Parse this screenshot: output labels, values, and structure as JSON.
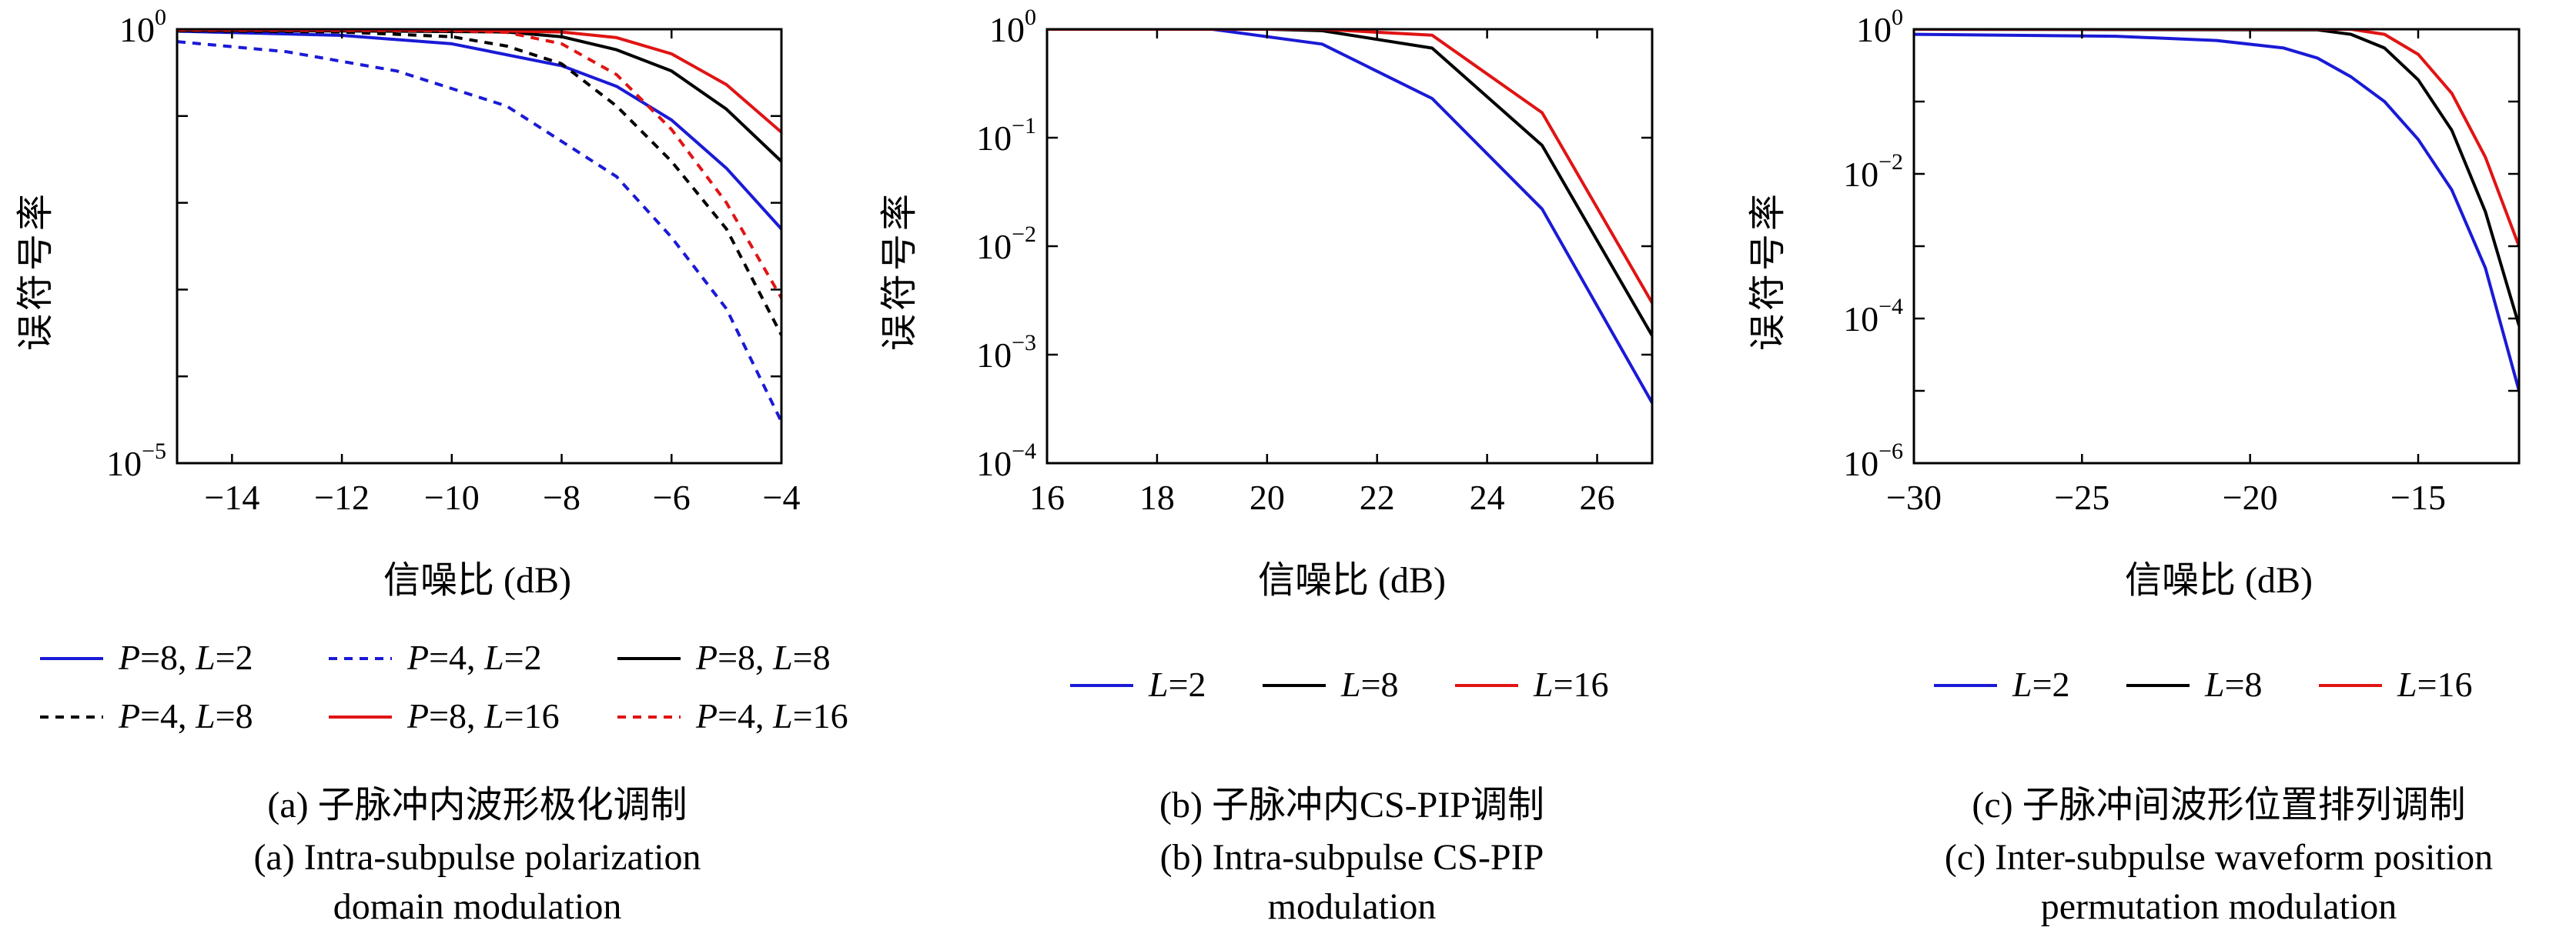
{
  "colors": {
    "blue": "#1a1ad6",
    "black": "#000000",
    "red": "#e01414"
  },
  "chart_data": [
    {
      "type": "line",
      "ylabel": "误符号率",
      "xlabel": "信噪比 (dB)",
      "yscale": "log",
      "xlim": [
        -15,
        -4
      ],
      "ylim_exp": [
        -5,
        0
      ],
      "xticks": [
        "−14",
        "−12",
        "−10",
        "−8",
        "−6",
        "−4"
      ],
      "xtick_values": [
        -14,
        -12,
        -10,
        -8,
        -6,
        -4
      ],
      "yticks": [
        {
          "base": "10",
          "exp": "0",
          "value_exp": 0
        },
        {
          "base": "10",
          "exp": "−5",
          "value_exp": -5
        }
      ],
      "legend_placement": "below",
      "series": [
        {
          "name": "P=8, L=2",
          "color": "blue",
          "dash": false,
          "x": [
            -15,
            -12,
            -10,
            -8,
            -7,
            -6,
            -5,
            -4
          ],
          "y": [
            0.95,
            0.85,
            0.68,
            0.38,
            0.22,
            0.09,
            0.025,
            0.005
          ]
        },
        {
          "name": "P=4, L=2",
          "color": "blue",
          "dash": true,
          "x": [
            -15,
            -13,
            -11,
            -9,
            -7,
            -6,
            -5,
            -4
          ],
          "y": [
            0.72,
            0.55,
            0.33,
            0.13,
            0.02,
            0.004,
            0.0006,
            3e-05
          ]
        },
        {
          "name": "P=8, L=8",
          "color": "black",
          "dash": false,
          "x": [
            -15,
            -11,
            -9,
            -8,
            -7,
            -6,
            -5,
            -4
          ],
          "y": [
            0.97,
            0.95,
            0.93,
            0.82,
            0.58,
            0.33,
            0.12,
            0.03
          ]
        },
        {
          "name": "P=4, L=8",
          "color": "black",
          "dash": true,
          "x": [
            -15,
            -12,
            -10,
            -9,
            -8,
            -7,
            -6,
            -5,
            -4
          ],
          "y": [
            0.96,
            0.93,
            0.82,
            0.64,
            0.4,
            0.13,
            0.03,
            0.005,
            0.0003
          ]
        },
        {
          "name": "P=8, L=16",
          "color": "red",
          "dash": false,
          "x": [
            -15,
            -10,
            -8,
            -7,
            -6,
            -5,
            -4
          ],
          "y": [
            0.99,
            0.98,
            0.93,
            0.8,
            0.52,
            0.23,
            0.065
          ]
        },
        {
          "name": "P=4, L=16",
          "color": "red",
          "dash": true,
          "x": [
            -15,
            -10,
            -9,
            -8,
            -7,
            -6,
            -5,
            -4
          ],
          "y": [
            0.98,
            0.96,
            0.92,
            0.68,
            0.3,
            0.07,
            0.01,
            0.0008
          ]
        }
      ]
    },
    {
      "type": "line",
      "ylabel": "误符号率",
      "xlabel": "信噪比 (dB)",
      "yscale": "log",
      "xlim": [
        16,
        27
      ],
      "ylim_exp": [
        -4,
        0
      ],
      "xticks": [
        "16",
        "18",
        "20",
        "22",
        "24",
        "26"
      ],
      "xtick_values": [
        16,
        18,
        20,
        22,
        24,
        26
      ],
      "yticks": [
        {
          "base": "10",
          "exp": "0",
          "value_exp": 0
        },
        {
          "base": "10",
          "exp": "−1",
          "value_exp": -1
        },
        {
          "base": "10",
          "exp": "−2",
          "value_exp": -2
        },
        {
          "base": "10",
          "exp": "−3",
          "value_exp": -3
        },
        {
          "base": "10",
          "exp": "−4",
          "value_exp": -4
        }
      ],
      "legend_placement": "below",
      "series": [
        {
          "name": "L=2",
          "color": "blue",
          "dash": false,
          "x": [
            16,
            19,
            21,
            23,
            25,
            27
          ],
          "y": [
            1.0,
            1.0,
            0.73,
            0.23,
            0.022,
            0.00036
          ]
        },
        {
          "name": "L=8",
          "color": "black",
          "dash": false,
          "x": [
            16,
            20,
            21,
            23,
            25,
            27
          ],
          "y": [
            1.0,
            1.0,
            0.97,
            0.67,
            0.085,
            0.0015
          ]
        },
        {
          "name": "L=16",
          "color": "red",
          "dash": false,
          "x": [
            16,
            21,
            23,
            25,
            27
          ],
          "y": [
            1.0,
            1.0,
            0.88,
            0.17,
            0.003
          ]
        }
      ]
    },
    {
      "type": "line",
      "ylabel": "误符号率",
      "xlabel": "信噪比 (dB)",
      "yscale": "log",
      "xlim": [
        -30,
        -12
      ],
      "ylim_exp": [
        -6,
        0
      ],
      "xticks": [
        "−30",
        "−25",
        "−20",
        "−15"
      ],
      "xtick_values": [
        -30,
        -25,
        -20,
        -15
      ],
      "yticks": [
        {
          "base": "10",
          "exp": "0",
          "value_exp": 0
        },
        {
          "base": "10",
          "exp": "−2",
          "value_exp": -2
        },
        {
          "base": "10",
          "exp": "−4",
          "value_exp": -4
        },
        {
          "base": "10",
          "exp": "−6",
          "value_exp": -6
        }
      ],
      "legend_placement": "below",
      "series": [
        {
          "name": "L=2",
          "color": "blue",
          "dash": false,
          "x": [
            -30,
            -24,
            -21,
            -19,
            -18,
            -17,
            -16,
            -15,
            -14,
            -13,
            -12
          ],
          "y": [
            0.85,
            0.8,
            0.7,
            0.55,
            0.4,
            0.22,
            0.1,
            0.03,
            0.006,
            0.0005,
            1e-05
          ]
        },
        {
          "name": "L=8",
          "color": "black",
          "dash": false,
          "x": [
            -30,
            -18,
            -17,
            -16,
            -15,
            -14,
            -13,
            -12
          ],
          "y": [
            1.0,
            0.98,
            0.85,
            0.55,
            0.2,
            0.04,
            0.003,
            8e-05
          ]
        },
        {
          "name": "L=16",
          "color": "red",
          "dash": false,
          "x": [
            -30,
            -17,
            -16,
            -15,
            -14,
            -13,
            -12
          ],
          "y": [
            1.0,
            1.0,
            0.85,
            0.45,
            0.13,
            0.017,
            0.001
          ]
        }
      ]
    }
  ],
  "legends": [
    [
      {
        "var1": "P",
        "val1": "=8, ",
        "var2": "L",
        "val2": "=2",
        "color": "blue",
        "dash": false
      },
      {
        "var1": "P",
        "val1": "=4, ",
        "var2": "L",
        "val2": "=2",
        "color": "blue",
        "dash": true
      },
      {
        "var1": "P",
        "val1": "=8, ",
        "var2": "L",
        "val2": "=8",
        "color": "black",
        "dash": false
      },
      {
        "var1": "P",
        "val1": "=4, ",
        "var2": "L",
        "val2": "=8",
        "color": "black",
        "dash": true
      },
      {
        "var1": "P",
        "val1": "=8, ",
        "var2": "L",
        "val2": "=16",
        "color": "red",
        "dash": false
      },
      {
        "var1": "P",
        "val1": "=4, ",
        "var2": "L",
        "val2": "=16",
        "color": "red",
        "dash": true
      }
    ],
    [
      {
        "var1": "L",
        "val1": "=2",
        "color": "blue",
        "dash": false
      },
      {
        "var1": "L",
        "val1": "=8",
        "color": "black",
        "dash": false
      },
      {
        "var1": "L",
        "val1": "=16",
        "color": "red",
        "dash": false
      }
    ],
    [
      {
        "var1": "L",
        "val1": "=2",
        "color": "blue",
        "dash": false
      },
      {
        "var1": "L",
        "val1": "=8",
        "color": "black",
        "dash": false
      },
      {
        "var1": "L",
        "val1": "=16",
        "color": "red",
        "dash": false
      }
    ]
  ],
  "captions": [
    [
      "(a) 子脉冲内波形极化调制",
      "(a) Intra-subpulse polarization",
      "domain modulation"
    ],
    [
      "(b) 子脉冲内CS-PIP调制",
      "(b) Intra-subpulse CS-PIP",
      "modulation"
    ],
    [
      "(c) 子脉冲间波形位置排列调制",
      "(c) Inter-subpulse waveform position",
      "permutation modulation"
    ]
  ]
}
